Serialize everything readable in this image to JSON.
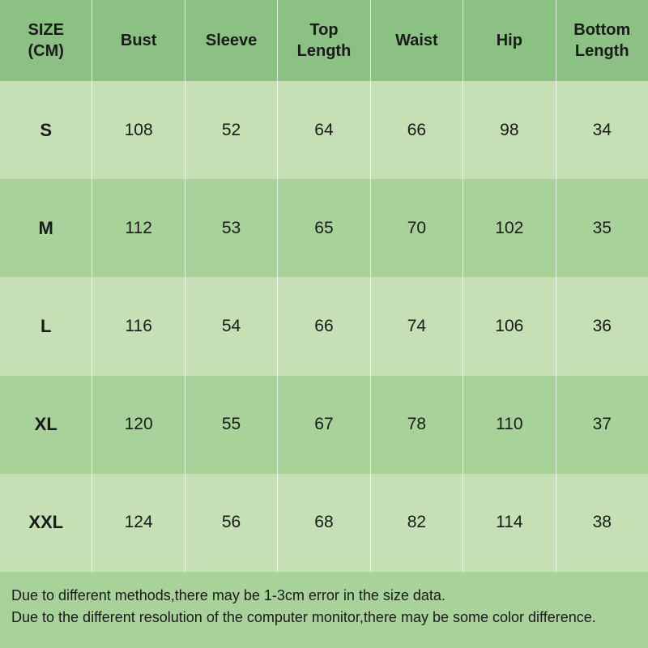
{
  "table": {
    "columns": [
      "SIZE\n(CM)",
      "Bust",
      "Sleeve",
      "Top\nLength",
      "Waist",
      "Hip",
      "Bottom\nLength"
    ],
    "rows": [
      [
        "S",
        "108",
        "52",
        "64",
        "66",
        "98",
        "34"
      ],
      [
        "M",
        "112",
        "53",
        "65",
        "70",
        "102",
        "35"
      ],
      [
        "L",
        "116",
        "54",
        "66",
        "74",
        "106",
        "36"
      ],
      [
        "XL",
        "120",
        "55",
        "67",
        "78",
        "110",
        "37"
      ],
      [
        "XXL",
        "124",
        "56",
        "68",
        "82",
        "114",
        "38"
      ]
    ],
    "header_bg": "#8bc183",
    "row_bg_even": "#c4e0b4",
    "row_bg_odd": "#a9d29a",
    "footer_bg": "#a9d29a",
    "border_color": "rgba(255,255,255,0.7)",
    "header_fontsize": 20,
    "size_label_fontsize": 22,
    "cell_fontsize": 21,
    "footer_fontsize": 18,
    "text_color": "#1a1a1a"
  },
  "footer": {
    "line1": "Due to different methods,there may be 1-3cm error in the size data.",
    "line2": "Due to the different resolution of the computer monitor,there may be some color difference."
  }
}
